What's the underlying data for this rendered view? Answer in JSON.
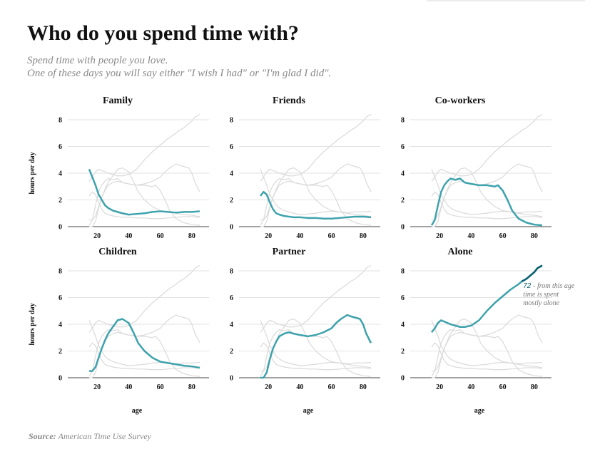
{
  "title": "Who do you spend time with?",
  "subtitle": [
    "Spend time with people you love.",
    "One of these days you will say either \"I wish I had\" or \"I'm glad I did\"."
  ],
  "source": {
    "label": "Source:",
    "text": "American Time Use Survey"
  },
  "colors": {
    "highlight": "#3ea2ad",
    "highlight_dark": "#0b5f70",
    "background_lines": "#dadada",
    "gridline": "#e2e2e2"
  },
  "chart_data": {
    "type": "line",
    "layout": "small-multiples 3x2",
    "xlabel": "age",
    "ylabel": "hours per day",
    "xlim": [
      15,
      85
    ],
    "ylim": [
      0,
      8
    ],
    "x_ticks": [
      20,
      40,
      60,
      80
    ],
    "y_ticks": [
      0,
      2,
      4,
      6,
      8
    ],
    "grid": true,
    "series": [
      {
        "name": "Family",
        "x": [
          15,
          17,
          19,
          21,
          23,
          25,
          27,
          30,
          33,
          36,
          40,
          45,
          50,
          55,
          60,
          65,
          70,
          75,
          80,
          85
        ],
        "values": [
          4.3,
          3.7,
          3.1,
          2.4,
          2.0,
          1.6,
          1.4,
          1.2,
          1.1,
          1.0,
          0.9,
          0.95,
          1.0,
          1.1,
          1.15,
          1.1,
          1.05,
          1.1,
          1.1,
          1.15
        ]
      },
      {
        "name": "Friends",
        "x": [
          15,
          17,
          19,
          21,
          23,
          25,
          27,
          30,
          33,
          36,
          40,
          45,
          50,
          55,
          60,
          65,
          70,
          75,
          80,
          85
        ],
        "values": [
          2.3,
          2.6,
          2.4,
          1.8,
          1.3,
          1.0,
          0.9,
          0.8,
          0.75,
          0.7,
          0.7,
          0.65,
          0.65,
          0.6,
          0.6,
          0.65,
          0.7,
          0.75,
          0.75,
          0.7
        ]
      },
      {
        "name": "Co-workers",
        "x": [
          15,
          17,
          19,
          21,
          23,
          25,
          27,
          30,
          33,
          36,
          40,
          45,
          50,
          55,
          57,
          60,
          63,
          66,
          70,
          75,
          80,
          85
        ],
        "values": [
          0.1,
          0.5,
          1.6,
          2.6,
          3.1,
          3.4,
          3.6,
          3.5,
          3.6,
          3.3,
          3.2,
          3.1,
          3.1,
          3.0,
          3.1,
          2.7,
          2.0,
          1.2,
          0.6,
          0.3,
          0.15,
          0.1
        ]
      },
      {
        "name": "Children",
        "x": [
          15,
          17,
          19,
          21,
          23,
          25,
          27,
          30,
          33,
          36,
          40,
          43,
          46,
          50,
          55,
          60,
          65,
          70,
          75,
          80,
          85
        ],
        "values": [
          0.5,
          0.5,
          0.8,
          1.5,
          2.2,
          2.8,
          3.3,
          3.8,
          4.3,
          4.4,
          4.1,
          3.4,
          2.6,
          2.0,
          1.5,
          1.2,
          1.1,
          1.0,
          0.9,
          0.85,
          0.75
        ]
      },
      {
        "name": "Partner",
        "x": [
          15,
          17,
          19,
          21,
          23,
          25,
          27,
          30,
          33,
          36,
          40,
          45,
          50,
          55,
          60,
          63,
          66,
          70,
          72,
          75,
          78,
          80,
          82,
          85
        ],
        "values": [
          0.0,
          0.0,
          0.4,
          1.4,
          2.2,
          2.7,
          3.1,
          3.3,
          3.4,
          3.3,
          3.2,
          3.1,
          3.2,
          3.4,
          3.7,
          4.1,
          4.4,
          4.7,
          4.6,
          4.5,
          4.4,
          4.0,
          3.3,
          2.6
        ]
      },
      {
        "name": "Alone",
        "x": [
          15,
          17,
          19,
          21,
          23,
          25,
          27,
          30,
          33,
          36,
          40,
          45,
          50,
          55,
          60,
          65,
          70,
          72,
          75,
          78,
          80,
          82,
          85
        ],
        "values": [
          3.4,
          3.7,
          4.1,
          4.3,
          4.2,
          4.1,
          4.0,
          3.9,
          3.8,
          3.8,
          3.9,
          4.3,
          5.0,
          5.6,
          6.1,
          6.6,
          7.0,
          7.2,
          7.4,
          7.7,
          7.9,
          8.2,
          8.4
        ]
      }
    ],
    "annotation": {
      "panel": "Alone",
      "age": 72,
      "number": "72",
      "text_lines": [
        "- from this age",
        "time is spent",
        "mostly alone"
      ]
    }
  }
}
